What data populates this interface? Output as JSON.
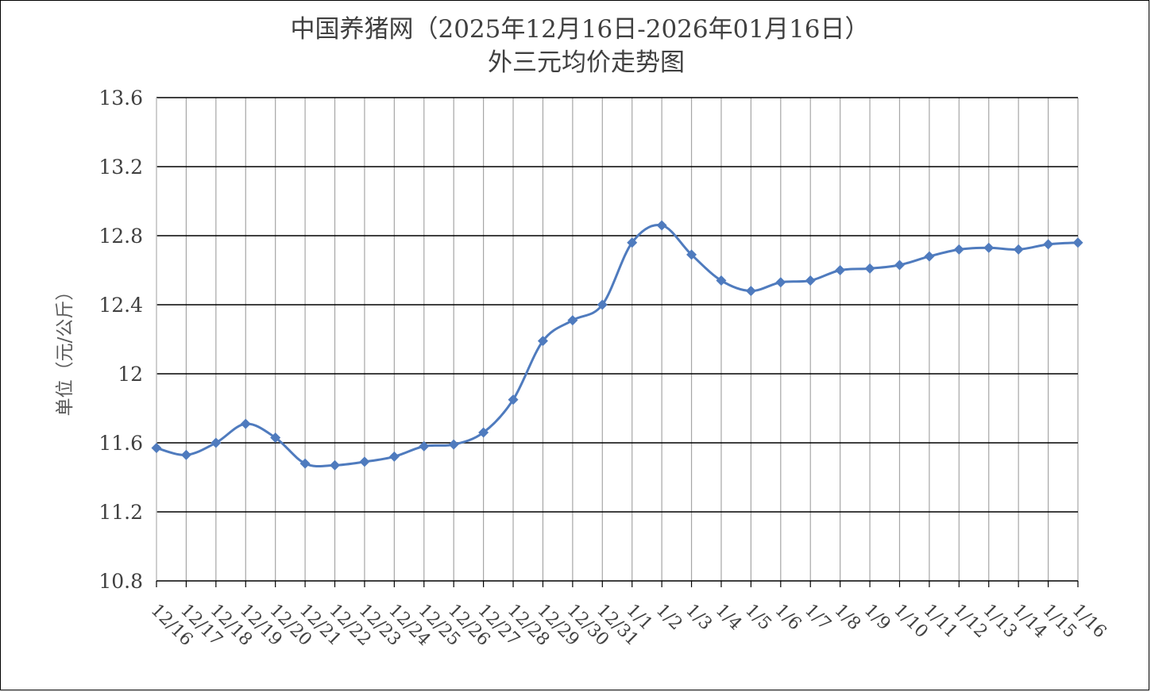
{
  "chart_data": {
    "type": "line",
    "title_line1": "中国养猪网（2025年12月16日-2026年01月16日）",
    "title_line2": "外三元均价走势图",
    "ylabel": "单位（元/公斤）",
    "xlabel": "",
    "ylim": [
      10.8,
      13.6
    ],
    "yticks": [
      "10.8",
      "11.2",
      "11.6",
      "12",
      "12.4",
      "12.8",
      "13.2",
      "13.6"
    ],
    "grid": true,
    "legend": "none",
    "line_color": "#4F7BBE",
    "categories": [
      "12/16",
      "12/17",
      "12/18",
      "12/19",
      "12/20",
      "12/21",
      "12/22",
      "12/23",
      "12/24",
      "12/25",
      "12/26",
      "12/27",
      "12/28",
      "12/29",
      "12/30",
      "12/31",
      "1/1",
      "1/2",
      "1/3",
      "1/4",
      "1/5",
      "1/6",
      "1/7",
      "1/8",
      "1/9",
      "1/10",
      "1/11",
      "1/12",
      "1/13",
      "1/14",
      "1/15",
      "1/16"
    ],
    "series": [
      {
        "values": [
          11.57,
          11.53,
          11.6,
          11.71,
          11.63,
          11.48,
          11.47,
          11.49,
          11.52,
          11.58,
          11.59,
          11.66,
          11.85,
          12.19,
          12.31,
          12.4,
          12.76,
          12.86,
          12.69,
          12.54,
          12.48,
          12.53,
          12.54,
          12.6,
          12.61,
          12.63,
          12.68,
          12.72,
          12.73,
          12.72,
          12.75,
          12.76
        ]
      }
    ]
  }
}
